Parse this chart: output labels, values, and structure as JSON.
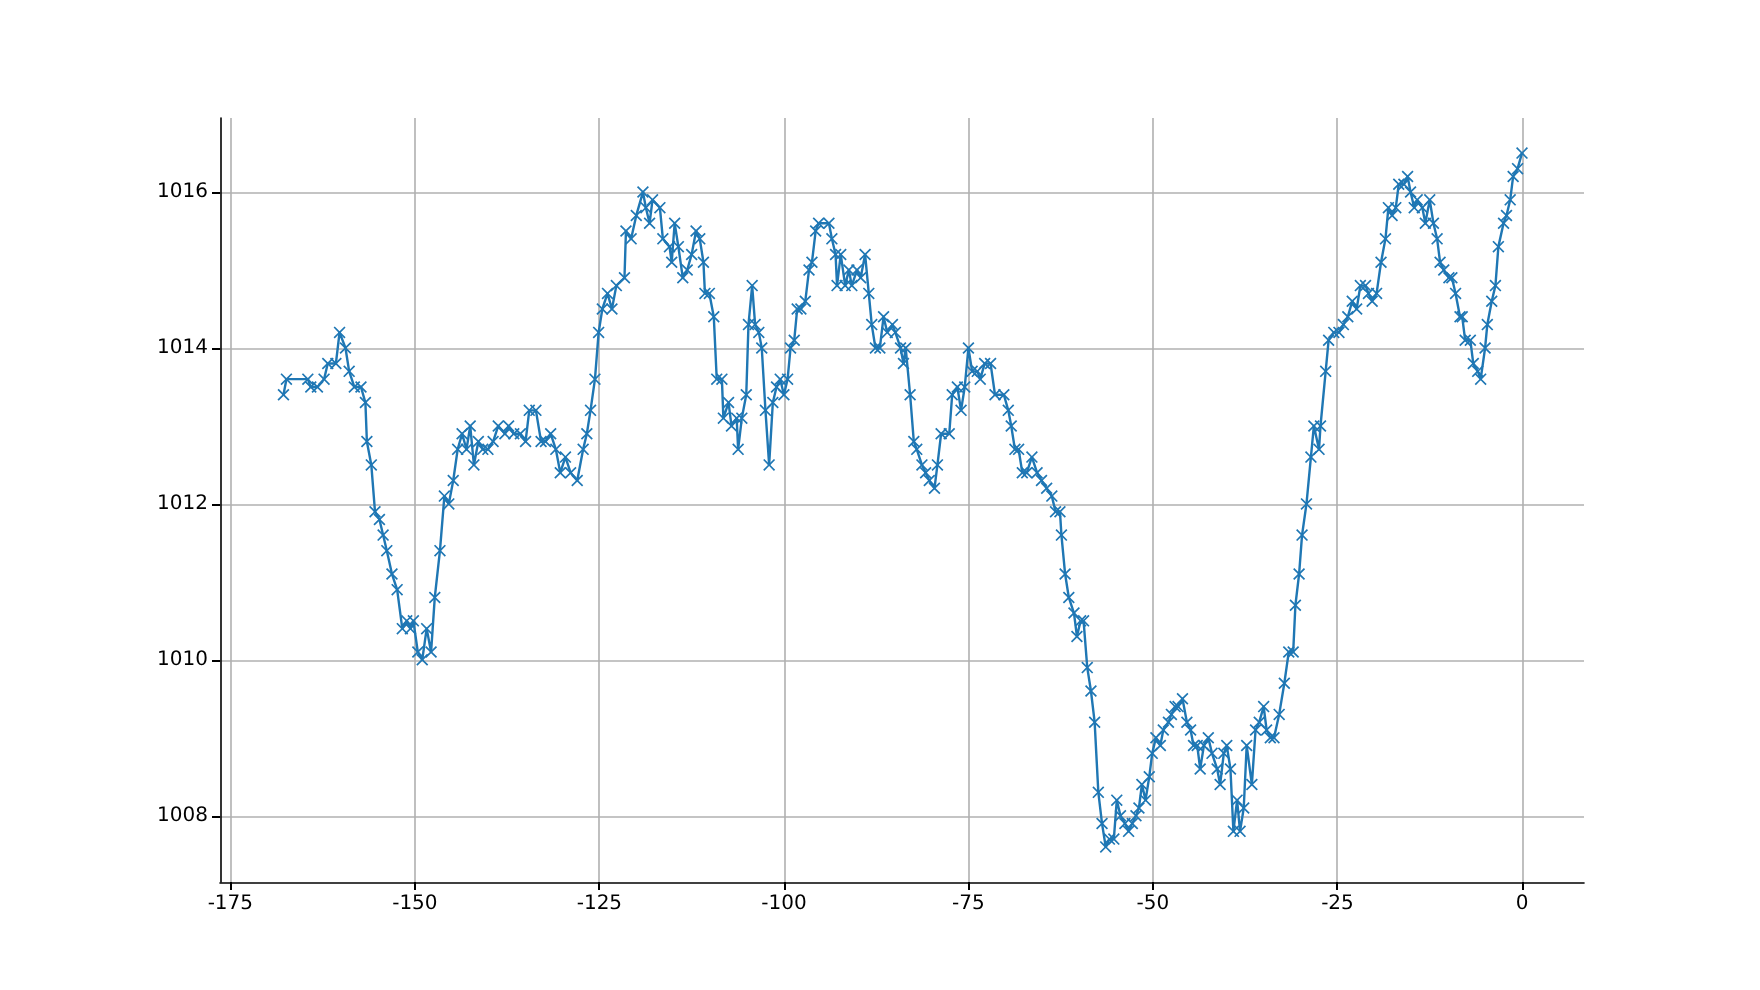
{
  "chart_data": {
    "type": "line",
    "xlim": [
      -176.4,
      8.4
    ],
    "ylim": [
      1007.15,
      1016.95
    ],
    "xticks": [
      -175,
      -150,
      -125,
      -100,
      -75,
      -50,
      -25,
      0
    ],
    "yticks": [
      1008,
      1010,
      1012,
      1014,
      1016
    ],
    "grid": true,
    "marker": "cross",
    "line_style": "solid",
    "series": [
      {
        "color": "#1f77b4",
        "x": [
          -167.8,
          -167.4,
          -164.5,
          -164.1,
          -163.2,
          -162.3,
          -161.8,
          -160.7,
          -160.2,
          -159.4,
          -158.9,
          -158.2,
          -157.3,
          -156.7,
          -156.5,
          -155.9,
          -155.4,
          -154.8,
          -154.3,
          -153.8,
          -153.1,
          -152.4,
          -151.7,
          -151.1,
          -150.6,
          -150.2,
          -149.6,
          -149.0,
          -148.4,
          -147.8,
          -147.3,
          -146.6,
          -146.0,
          -145.4,
          -144.8,
          -144.2,
          -143.6,
          -143.0,
          -142.5,
          -142.0,
          -141.4,
          -140.8,
          -140.1,
          -139.4,
          -138.7,
          -137.8,
          -137.3,
          -136.6,
          -135.7,
          -135.0,
          -134.5,
          -133.6,
          -132.9,
          -132.3,
          -131.6,
          -130.9,
          -130.3,
          -129.6,
          -128.9,
          -128.0,
          -127.2,
          -126.7,
          -126.2,
          -125.6,
          -125.1,
          -124.6,
          -123.9,
          -123.3,
          -122.7,
          -121.6,
          -121.4,
          -120.7,
          -120.0,
          -119.1,
          -118.7,
          -118.2,
          -117.8,
          -116.8,
          -116.4,
          -115.5,
          -115.2,
          -114.8,
          -114.3,
          -113.7,
          -113.1,
          -112.5,
          -111.9,
          -111.4,
          -110.9,
          -110.7,
          -110.1,
          -109.5,
          -109.1,
          -108.4,
          -108.2,
          -107.5,
          -107.1,
          -106.4,
          -106.2,
          -105.7,
          -105.1,
          -104.8,
          -104.3,
          -103.9,
          -103.4,
          -103.0,
          -102.5,
          -102.0,
          -101.5,
          -101.0,
          -100.5,
          -100.0,
          -99.5,
          -99.1,
          -98.6,
          -98.2,
          -97.7,
          -97.1,
          -96.6,
          -96.2,
          -95.7,
          -95.3,
          -93.9,
          -93.5,
          -93.0,
          -92.8,
          -92.3,
          -91.7,
          -91.2,
          -90.8,
          -90.1,
          -89.6,
          -89.0,
          -88.5,
          -88.1,
          -87.6,
          -87.0,
          -86.5,
          -86.0,
          -85.3,
          -84.9,
          -84.2,
          -83.8,
          -83.5,
          -82.9,
          -82.4,
          -82.0,
          -81.3,
          -80.8,
          -80.3,
          -79.6,
          -79.2,
          -78.7,
          -77.6,
          -77.2,
          -76.5,
          -76.0,
          -75.5,
          -75.0,
          -74.5,
          -73.8,
          -73.4,
          -72.8,
          -72.0,
          -71.4,
          -70.2,
          -69.6,
          -69.2,
          -68.7,
          -68.2,
          -67.7,
          -67.1,
          -66.4,
          -65.7,
          -65.1,
          -64.4,
          -63.7,
          -63.2,
          -62.6,
          -62.4,
          -61.9,
          -61.4,
          -60.7,
          -60.3,
          -59.8,
          -59.4,
          -58.9,
          -58.4,
          -57.9,
          -57.4,
          -56.9,
          -56.4,
          -55.9,
          -55.3,
          -54.9,
          -54.4,
          -53.8,
          -53.3,
          -52.8,
          -52.3,
          -51.9,
          -51.5,
          -51.0,
          -50.5,
          -50.1,
          -49.6,
          -49.0,
          -48.6,
          -47.9,
          -47.5,
          -47.0,
          -46.6,
          -46.0,
          -45.4,
          -44.9,
          -44.5,
          -44.0,
          -43.6,
          -43.1,
          -42.5,
          -42.0,
          -41.3,
          -40.9,
          -40.4,
          -40.0,
          -39.5,
          -39.1,
          -38.6,
          -38.2,
          -37.7,
          -37.3,
          -36.6,
          -36.1,
          -35.6,
          -35.0,
          -34.6,
          -34.1,
          -33.6,
          -32.9,
          -32.2,
          -31.6,
          -31.0,
          -30.7,
          -30.2,
          -29.8,
          -29.2,
          -28.6,
          -28.2,
          -27.5,
          -27.3,
          -26.6,
          -26.2,
          -25.5,
          -24.8,
          -24.2,
          -23.6,
          -23.0,
          -22.4,
          -21.9,
          -21.2,
          -20.8,
          -20.3,
          -19.7,
          -19.1,
          -18.5,
          -18.1,
          -17.6,
          -17.1,
          -16.7,
          -16.0,
          -15.5,
          -15.1,
          -14.6,
          -14.2,
          -13.5,
          -13.1,
          -12.5,
          -12.0,
          -11.5,
          -11.1,
          -10.6,
          -9.9,
          -9.5,
          -9.0,
          -8.4,
          -8.1,
          -7.7,
          -7.0,
          -6.6,
          -6.0,
          -5.6,
          -5.0,
          -4.7,
          -4.1,
          -3.6,
          -3.2,
          -2.5,
          -2.1,
          -1.6,
          -1.2,
          -0.6,
          0.0
        ],
        "values": [
          1013.4,
          1013.6,
          1013.6,
          1013.5,
          1013.5,
          1013.6,
          1013.8,
          1013.8,
          1014.2,
          1014.0,
          1013.7,
          1013.5,
          1013.5,
          1013.3,
          1012.8,
          1012.5,
          1011.9,
          1011.8,
          1011.6,
          1011.4,
          1011.1,
          1010.9,
          1010.4,
          1010.5,
          1010.4,
          1010.5,
          1010.1,
          1010.0,
          1010.4,
          1010.1,
          1010.8,
          1011.4,
          1012.1,
          1012.0,
          1012.3,
          1012.7,
          1012.9,
          1012.7,
          1013.0,
          1012.5,
          1012.8,
          1012.7,
          1012.7,
          1012.8,
          1013.0,
          1012.9,
          1013.0,
          1012.9,
          1012.9,
          1012.8,
          1013.2,
          1013.2,
          1012.8,
          1012.8,
          1012.9,
          1012.7,
          1012.4,
          1012.6,
          1012.4,
          1012.3,
          1012.7,
          1012.9,
          1013.2,
          1013.6,
          1014.2,
          1014.5,
          1014.7,
          1014.5,
          1014.8,
          1014.9,
          1015.5,
          1015.4,
          1015.7,
          1016.0,
          1015.8,
          1015.6,
          1015.9,
          1015.8,
          1015.4,
          1015.3,
          1015.1,
          1015.6,
          1015.3,
          1014.9,
          1015.0,
          1015.2,
          1015.5,
          1015.4,
          1015.1,
          1014.7,
          1014.7,
          1014.4,
          1013.6,
          1013.6,
          1013.1,
          1013.3,
          1013.0,
          1013.1,
          1012.7,
          1013.1,
          1013.4,
          1014.3,
          1014.8,
          1014.3,
          1014.2,
          1014.0,
          1013.2,
          1012.5,
          1013.3,
          1013.5,
          1013.6,
          1013.4,
          1013.6,
          1014.0,
          1014.1,
          1014.5,
          1014.5,
          1014.6,
          1015.0,
          1015.1,
          1015.5,
          1015.6,
          1015.6,
          1015.4,
          1015.2,
          1014.8,
          1015.2,
          1014.8,
          1015.0,
          1014.8,
          1015.0,
          1014.9,
          1015.2,
          1014.7,
          1014.3,
          1014.0,
          1014.0,
          1014.4,
          1014.2,
          1014.3,
          1014.2,
          1014.0,
          1013.8,
          1014.0,
          1013.4,
          1012.8,
          1012.7,
          1012.5,
          1012.4,
          1012.3,
          1012.2,
          1012.5,
          1012.9,
          1012.9,
          1013.4,
          1013.5,
          1013.2,
          1013.5,
          1014.0,
          1013.7,
          1013.7,
          1013.6,
          1013.8,
          1013.8,
          1013.4,
          1013.4,
          1013.2,
          1013.0,
          1012.7,
          1012.7,
          1012.4,
          1012.4,
          1012.6,
          1012.4,
          1012.3,
          1012.2,
          1012.1,
          1011.9,
          1011.9,
          1011.6,
          1011.1,
          1010.8,
          1010.6,
          1010.3,
          1010.5,
          1010.5,
          1009.9,
          1009.6,
          1009.2,
          1008.3,
          1007.9,
          1007.6,
          1007.7,
          1007.7,
          1008.2,
          1008.0,
          1007.9,
          1007.8,
          1007.9,
          1008.0,
          1008.1,
          1008.4,
          1008.2,
          1008.5,
          1008.8,
          1009.0,
          1008.9,
          1009.1,
          1009.2,
          1009.3,
          1009.4,
          1009.4,
          1009.5,
          1009.2,
          1009.1,
          1008.9,
          1008.9,
          1008.6,
          1008.9,
          1009.0,
          1008.8,
          1008.6,
          1008.4,
          1008.8,
          1008.9,
          1008.6,
          1007.8,
          1008.2,
          1007.8,
          1008.1,
          1008.9,
          1008.4,
          1009.1,
          1009.2,
          1009.4,
          1009.1,
          1009.0,
          1009.0,
          1009.3,
          1009.7,
          1010.1,
          1010.1,
          1010.7,
          1011.1,
          1011.6,
          1012.0,
          1012.6,
          1013.0,
          1012.7,
          1013.0,
          1013.7,
          1014.1,
          1014.2,
          1014.2,
          1014.3,
          1014.4,
          1014.6,
          1014.5,
          1014.8,
          1014.8,
          1014.7,
          1014.6,
          1014.7,
          1015.1,
          1015.4,
          1015.8,
          1015.7,
          1015.8,
          1016.1,
          1016.1,
          1016.2,
          1016.0,
          1015.8,
          1015.9,
          1015.8,
          1015.6,
          1015.9,
          1015.6,
          1015.4,
          1015.1,
          1015.0,
          1014.9,
          1014.9,
          1014.7,
          1014.4,
          1014.4,
          1014.1,
          1014.1,
          1013.8,
          1013.7,
          1013.6,
          1014.0,
          1014.3,
          1014.6,
          1014.8,
          1015.3,
          1015.6,
          1015.7,
          1015.9,
          1016.2,
          1016.3,
          1016.5
        ]
      }
    ]
  }
}
